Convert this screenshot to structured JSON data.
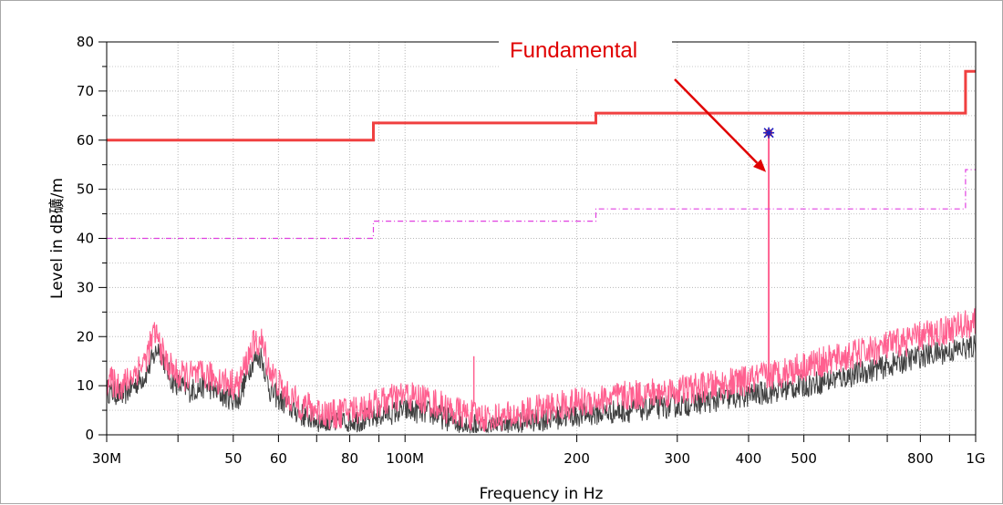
{
  "chart_data": {
    "type": "line",
    "title": "",
    "xlabel": "Frequency in Hz",
    "ylabel": "Level in dB礦/m",
    "x_scale": "log",
    "xlim": [
      30000000,
      1000000000
    ],
    "ylim": [
      0,
      80
    ],
    "grid": true,
    "x_ticks": [
      {
        "value": 30000000,
        "label": "30M"
      },
      {
        "value": 40000000,
        "label": ""
      },
      {
        "value": 50000000,
        "label": "50"
      },
      {
        "value": 60000000,
        "label": "60"
      },
      {
        "value": 70000000,
        "label": ""
      },
      {
        "value": 80000000,
        "label": "80"
      },
      {
        "value": 90000000,
        "label": ""
      },
      {
        "value": 100000000,
        "label": "100M"
      },
      {
        "value": 200000000,
        "label": "200"
      },
      {
        "value": 300000000,
        "label": "300"
      },
      {
        "value": 400000000,
        "label": "400"
      },
      {
        "value": 500000000,
        "label": "500"
      },
      {
        "value": 600000000,
        "label": ""
      },
      {
        "value": 700000000,
        "label": ""
      },
      {
        "value": 800000000,
        "label": "800"
      },
      {
        "value": 900000000,
        "label": ""
      },
      {
        "value": 1000000000,
        "label": "1G"
      }
    ],
    "y_ticks": [
      0,
      10,
      20,
      30,
      40,
      50,
      60,
      70,
      80
    ],
    "series": [
      {
        "role": "limit_peak",
        "color": "#f04040",
        "style": "solid",
        "points": [
          [
            30000000,
            60
          ],
          [
            88000000,
            60
          ],
          [
            88000000,
            63.5
          ],
          [
            216000000,
            63.5
          ],
          [
            216000000,
            65.5
          ],
          [
            960000000,
            65.5
          ],
          [
            960000000,
            74
          ],
          [
            1000000000,
            74
          ]
        ]
      },
      {
        "role": "limit_margin",
        "color": "#e040e0",
        "style": "dash-dot",
        "points": [
          [
            30000000,
            40
          ],
          [
            88000000,
            40
          ],
          [
            88000000,
            43.5
          ],
          [
            216000000,
            43.5
          ],
          [
            216000000,
            46
          ],
          [
            960000000,
            46
          ],
          [
            960000000,
            54
          ],
          [
            1000000000,
            54
          ]
        ]
      },
      {
        "role": "noise_floor",
        "color": "#404040",
        "points": [
          [
            30000000,
            9
          ],
          [
            32000000,
            8
          ],
          [
            35000000,
            12
          ],
          [
            37000000,
            18
          ],
          [
            39000000,
            11
          ],
          [
            42000000,
            9
          ],
          [
            45000000,
            10
          ],
          [
            48000000,
            8
          ],
          [
            51000000,
            7
          ],
          [
            54000000,
            15
          ],
          [
            56000000,
            16
          ],
          [
            58000000,
            9
          ],
          [
            62000000,
            6
          ],
          [
            66000000,
            4
          ],
          [
            70000000,
            3
          ],
          [
            75000000,
            2
          ],
          [
            80000000,
            3
          ],
          [
            85000000,
            3
          ],
          [
            90000000,
            4
          ],
          [
            100000000,
            5
          ],
          [
            110000000,
            4.5
          ],
          [
            120000000,
            3
          ],
          [
            130000000,
            2
          ],
          [
            140000000,
            1.5
          ],
          [
            150000000,
            1.5
          ],
          [
            170000000,
            3
          ],
          [
            200000000,
            4
          ],
          [
            250000000,
            5
          ],
          [
            300000000,
            6
          ],
          [
            350000000,
            7
          ],
          [
            400000000,
            8
          ],
          [
            450000000,
            9
          ],
          [
            500000000,
            10
          ],
          [
            600000000,
            12
          ],
          [
            700000000,
            14
          ],
          [
            800000000,
            16
          ],
          [
            900000000,
            17
          ],
          [
            1000000000,
            18
          ]
        ]
      },
      {
        "role": "measured_peak",
        "color": "#ff6090",
        "points": [
          [
            30000000,
            11
          ],
          [
            32000000,
            10
          ],
          [
            35000000,
            15
          ],
          [
            36500000,
            21
          ],
          [
            38000000,
            15
          ],
          [
            40000000,
            12
          ],
          [
            45000000,
            12
          ],
          [
            48000000,
            11
          ],
          [
            51000000,
            10
          ],
          [
            54000000,
            18
          ],
          [
            56000000,
            19
          ],
          [
            58000000,
            13
          ],
          [
            62000000,
            8
          ],
          [
            66000000,
            6
          ],
          [
            70000000,
            5
          ],
          [
            75000000,
            4
          ],
          [
            80000000,
            5
          ],
          [
            85000000,
            5.5
          ],
          [
            90000000,
            6.5
          ],
          [
            100000000,
            8
          ],
          [
            110000000,
            7
          ],
          [
            120000000,
            5
          ],
          [
            130000000,
            4
          ],
          [
            140000000,
            3.5
          ],
          [
            150000000,
            3.5
          ],
          [
            170000000,
            5
          ],
          [
            200000000,
            6.5
          ],
          [
            250000000,
            8
          ],
          [
            300000000,
            9
          ],
          [
            350000000,
            10
          ],
          [
            400000000,
            11
          ],
          [
            450000000,
            12.5
          ],
          [
            500000000,
            14
          ],
          [
            600000000,
            16
          ],
          [
            700000000,
            18
          ],
          [
            800000000,
            20
          ],
          [
            900000000,
            21.5
          ],
          [
            1000000000,
            23
          ]
        ]
      }
    ],
    "fundamental": {
      "x": 433920000,
      "y": 61.5,
      "color": "#ff6090",
      "marker_color": "#2020c0"
    },
    "spur": {
      "x": 132000000,
      "y": 16
    },
    "annotation": {
      "text": "Fundamental",
      "color": "#e00000"
    }
  }
}
